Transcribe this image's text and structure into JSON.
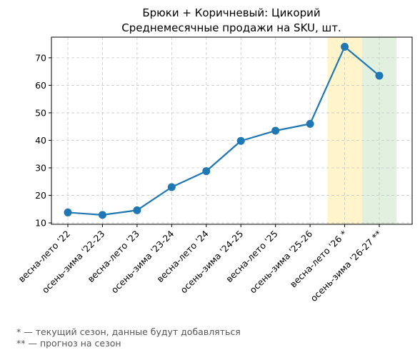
{
  "chart_data": {
    "type": "line",
    "title": "Брюки + Коричневый: Цикорий",
    "subtitle": "Среднемесячные продажи на SKU, шт.",
    "categories": [
      "весна-лето '22",
      "осень-зима '22-23",
      "весна-лето '23",
      "осень-зима '23-24",
      "весна-лето '24",
      "осень-зима '24-25",
      "весна-лето '25",
      "осень-зима '25-26",
      "весна-лето '26 *",
      "осень-зима '26-27 **"
    ],
    "series": [
      {
        "values": [
          13.8,
          12.9,
          14.6,
          23.0,
          28.8,
          39.8,
          43.5,
          46.0,
          74.0,
          63.5
        ]
      }
    ],
    "ylim": [
      9.5,
      77.5
    ],
    "yticks": [
      "10",
      "20",
      "30",
      "40",
      "50",
      "60",
      "70"
    ],
    "grid": true,
    "highlights": [
      {
        "category_index": 8,
        "color": "#fff3c4",
        "meaning": "current"
      },
      {
        "category_index": 9,
        "color": "#dfeedd",
        "meaning": "forecast"
      }
    ],
    "line_color": "#1f77b4"
  },
  "footnotes": [
    "* — текущий сезон, данные будут добавляться",
    "** — прогноз на сезон"
  ]
}
